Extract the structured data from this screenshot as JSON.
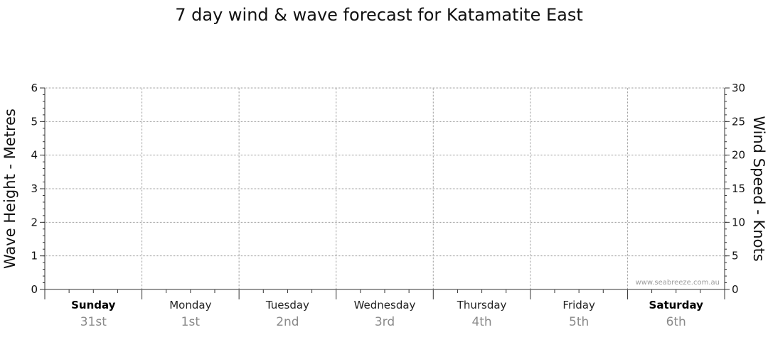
{
  "chart_data": {
    "type": "line",
    "title": "7 day wind & wave forecast for Katamatite East",
    "ylabel_left": "Wave Height - Metres",
    "ylabel_right": "Wind Speed - Knots",
    "ylim_left": [
      0,
      6
    ],
    "ylim_right": [
      0,
      30
    ],
    "yticks_left": [
      0,
      1,
      2,
      3,
      4,
      5,
      6
    ],
    "yticks_right": [
      0,
      5,
      10,
      15,
      20,
      25,
      30
    ],
    "grid": true,
    "days": [
      {
        "day": "Sunday",
        "date": "31st",
        "bold": true
      },
      {
        "day": "Monday",
        "date": "1st",
        "bold": false
      },
      {
        "day": "Tuesday",
        "date": "2nd",
        "bold": false
      },
      {
        "day": "Wednesday",
        "date": "3rd",
        "bold": false
      },
      {
        "day": "Thursday",
        "date": "4th",
        "bold": false
      },
      {
        "day": "Friday",
        "date": "5th",
        "bold": false
      },
      {
        "day": "Saturday",
        "date": "6th",
        "bold": true
      }
    ],
    "series": [],
    "watermark": "www.seabreeze.com.au"
  }
}
